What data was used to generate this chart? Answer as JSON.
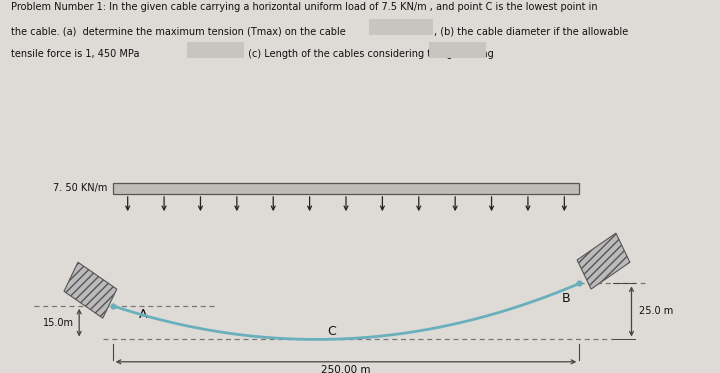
{
  "title_line1": "Problem Number 1: In the given cable carrying a horizontal uniform load of 7.5 KN/m , and point C is the lowest point in",
  "title_line2": "the cable. (a)  determine the maximum tension (Tmax) on the cable",
  "title_line2b": ", (b) the cable diameter if the allowable",
  "title_line3": "tensile force is 1, 450 MPa",
  "title_line3b": " (c) Length of the cables considering the given sag",
  "load_label": "7. 50 KN/m",
  "span_label": "250.00 m",
  "sag_A_label": "15.0m",
  "sag_B_label": "25.0 m",
  "point_A": "A",
  "point_B": "B",
  "point_C": "C",
  "bg_color": "#dedad6",
  "cable_color": "#6ab0bc",
  "bar_fill": "#c0bcb8",
  "bar_edge": "#555555",
  "hatch_fill": "#bbbbbb",
  "hatch_edge": "#555555",
  "text_color": "#111111",
  "dim_color": "#444444",
  "dash_color": "#777777",
  "box_color": "#c8c4c0",
  "sag_A": 15.0,
  "sag_B": 25.0,
  "span": 250.0
}
